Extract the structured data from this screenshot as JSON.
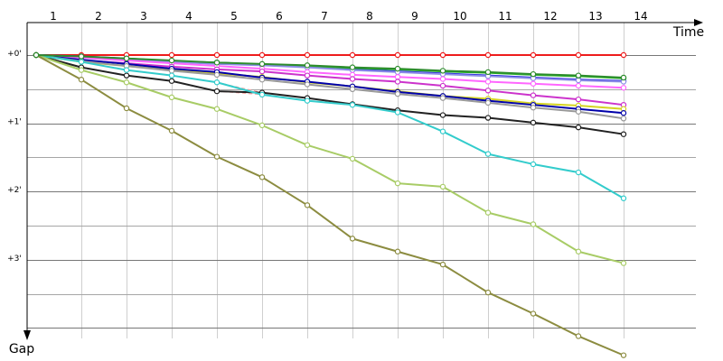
{
  "chart_data": {
    "type": "line",
    "title": "",
    "xlabel": "Time",
    "ylabel": "Gap",
    "x_categories": [
      "1",
      "2",
      "3",
      "4",
      "5",
      "6",
      "7",
      "8",
      "9",
      "10",
      "11",
      "12",
      "13",
      "14"
    ],
    "y_ticks": [
      {
        "value": 0,
        "label": "+0'"
      },
      {
        "value": 1,
        "label": "+1'"
      },
      {
        "value": 2,
        "label": "+2'"
      },
      {
        "value": 3,
        "label": "+3'"
      }
    ],
    "ylim": [
      0,
      4.2
    ],
    "grid": true,
    "legend": "none",
    "connector_color": "#ff9f9f",
    "series": [
      {
        "color": "#ee1c1c",
        "values": [
          0.0,
          0.0,
          0.0,
          0.0,
          0.0,
          0.0,
          0.0,
          0.0,
          0.0,
          0.0,
          0.0,
          0.0,
          0.0,
          0.0
        ]
      },
      {
        "color": "#1c1cdc",
        "values": [
          0.0,
          0.02,
          0.05,
          0.09,
          0.11,
          0.14,
          0.17,
          0.21,
          0.24,
          0.27,
          0.3,
          0.33,
          0.36,
          0.38
        ]
      },
      {
        "color": "#22b422",
        "values": [
          0.0,
          0.03,
          0.06,
          0.09,
          0.11,
          0.14,
          0.16,
          0.19,
          0.21,
          0.24,
          0.26,
          0.29,
          0.31,
          0.34
        ]
      },
      {
        "color": "#8c8ce6",
        "values": [
          0.0,
          0.03,
          0.06,
          0.1,
          0.13,
          0.15,
          0.18,
          0.22,
          0.25,
          0.28,
          0.31,
          0.34,
          0.37,
          0.39
        ]
      },
      {
        "color": "#ff66ff",
        "values": [
          0.0,
          0.04,
          0.08,
          0.12,
          0.16,
          0.2,
          0.25,
          0.29,
          0.32,
          0.35,
          0.39,
          0.42,
          0.45,
          0.48
        ]
      },
      {
        "color": "#cc33cc",
        "values": [
          0.0,
          0.08,
          0.12,
          0.17,
          0.21,
          0.24,
          0.3,
          0.35,
          0.39,
          0.45,
          0.52,
          0.59,
          0.65,
          0.73
        ]
      },
      {
        "color": "#d4d422",
        "values": [
          0.0,
          0.1,
          0.16,
          0.22,
          0.27,
          0.32,
          0.4,
          0.46,
          0.53,
          0.6,
          0.64,
          0.71,
          0.74,
          0.79
        ]
      },
      {
        "color": "#0000aa",
        "values": [
          0.0,
          0.07,
          0.13,
          0.2,
          0.25,
          0.33,
          0.39,
          0.46,
          0.54,
          0.6,
          0.67,
          0.73,
          0.79,
          0.85
        ]
      },
      {
        "color": "#999999",
        "values": [
          0.0,
          0.09,
          0.16,
          0.23,
          0.29,
          0.36,
          0.43,
          0.5,
          0.57,
          0.63,
          0.7,
          0.77,
          0.83,
          0.93
        ]
      },
      {
        "color": "#222222",
        "values": [
          0.0,
          0.18,
          0.3,
          0.38,
          0.53,
          0.55,
          0.63,
          0.72,
          0.81,
          0.88,
          0.92,
          0.99,
          1.06,
          1.16
        ]
      },
      {
        "color": "#33cccc",
        "values": [
          0.0,
          0.1,
          0.22,
          0.3,
          0.4,
          0.58,
          0.67,
          0.73,
          0.84,
          1.12,
          1.45,
          1.6,
          1.72,
          2.1
        ]
      },
      {
        "color": "#a8cc66",
        "values": [
          0.0,
          0.22,
          0.4,
          0.62,
          0.79,
          1.03,
          1.32,
          1.52,
          1.88,
          1.93,
          2.31,
          2.48,
          2.88,
          3.05
        ]
      },
      {
        "color": "#8c8c40",
        "values": [
          0.0,
          0.36,
          0.78,
          1.11,
          1.49,
          1.79,
          2.2,
          2.69,
          2.88,
          3.07,
          3.48,
          3.79,
          4.12,
          4.4
        ]
      },
      {
        "color": "#2d8c2d",
        "values": [
          0.0,
          0.02,
          0.05,
          0.08,
          0.11,
          0.13,
          0.15,
          0.18,
          0.2,
          0.23,
          0.25,
          0.28,
          0.3,
          0.33
        ]
      }
    ]
  }
}
